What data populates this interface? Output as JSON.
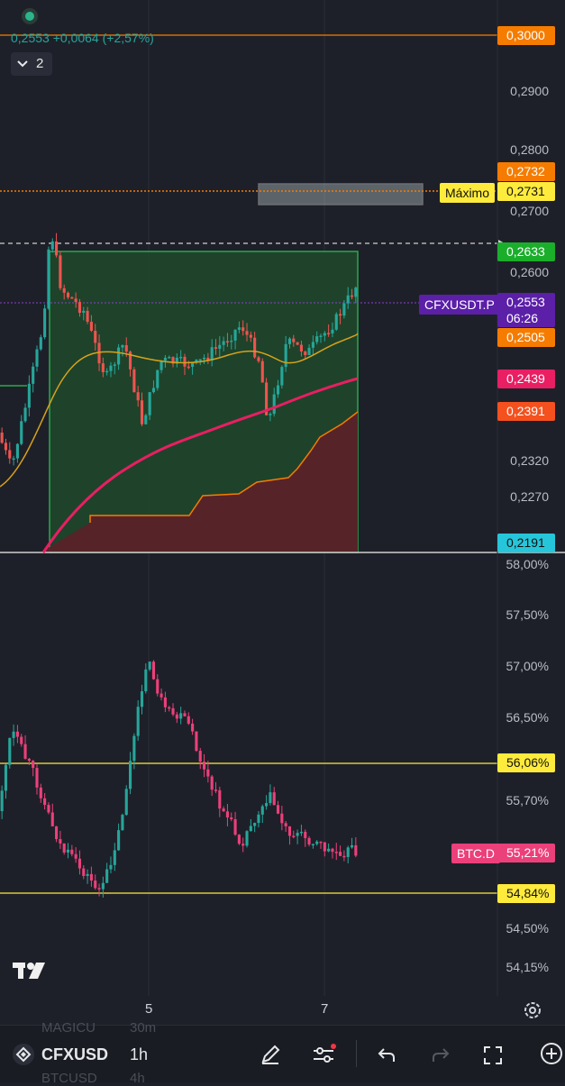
{
  "legend": {
    "price": "0,2553",
    "change": "+0,0064 (+2,57%)"
  },
  "collapse": {
    "count": "2"
  },
  "price_axis": [
    "0,2900",
    "0,2800",
    "0,2700",
    "0,2600",
    "0,2320",
    "0,2270"
  ],
  "price_tags": [
    {
      "text": "0,3000",
      "bg": "#f57c00",
      "fg": "#ffffff"
    },
    {
      "text": "0,2732",
      "bg": "#f57c00",
      "fg": "#ffffff"
    },
    {
      "text": "0,2731",
      "bg": "#ffeb3b",
      "fg": "#111111"
    },
    {
      "text": "0,2633",
      "bg": "#1aae2b",
      "fg": "#ffffff"
    },
    {
      "text": "0,2553",
      "bg": "#5b1fa8",
      "fg": "#ffffff"
    },
    {
      "text": "0,2505",
      "bg": "#f57c00",
      "fg": "#ffffff"
    },
    {
      "text": "0,2439",
      "bg": "#e91e63",
      "fg": "#ffffff"
    },
    {
      "text": "0,2391",
      "bg": "#f4511e",
      "fg": "#ffffff"
    },
    {
      "text": "0,2191",
      "bg": "#26c6da",
      "fg": "#111111"
    }
  ],
  "countdown": "06:26",
  "maximo_label": "Máximo",
  "symbol_label": "CFXUSDT.P",
  "indicator_axis": [
    "58,00%",
    "57,50%",
    "57,00%",
    "56,50%",
    "55,70%",
    "54,50%",
    "54,15%"
  ],
  "indicator_tags": [
    {
      "text": "56,06%",
      "bg": "#ffeb3b",
      "fg": "#111111"
    },
    {
      "text": "55,21%",
      "bg": "#ec407a",
      "fg": "#ffffff"
    },
    {
      "text": "54,84%",
      "bg": "#ffeb3b",
      "fg": "#111111"
    }
  ],
  "indicator_symbol": "BTC.D",
  "x_axis": [
    "5",
    "7"
  ],
  "bottom_bar": {
    "symbol": "CFXUSD",
    "interval": "1h",
    "ghost_top_symbol": "MAGICU",
    "ghost_top_interval": "30m",
    "ghost_bottom_symbol": "BTCUSD",
    "ghost_bottom_interval": "4h"
  },
  "colors": {
    "background": "#1e2029",
    "up": "#26a69a",
    "down": "#ef5350",
    "btc_d_down": "#ec407a",
    "orange_line": "#f57c00",
    "yellow_line": "#ffeb3b",
    "ma_orange": "#d7a21c",
    "ma_pink": "#e91e63"
  }
}
